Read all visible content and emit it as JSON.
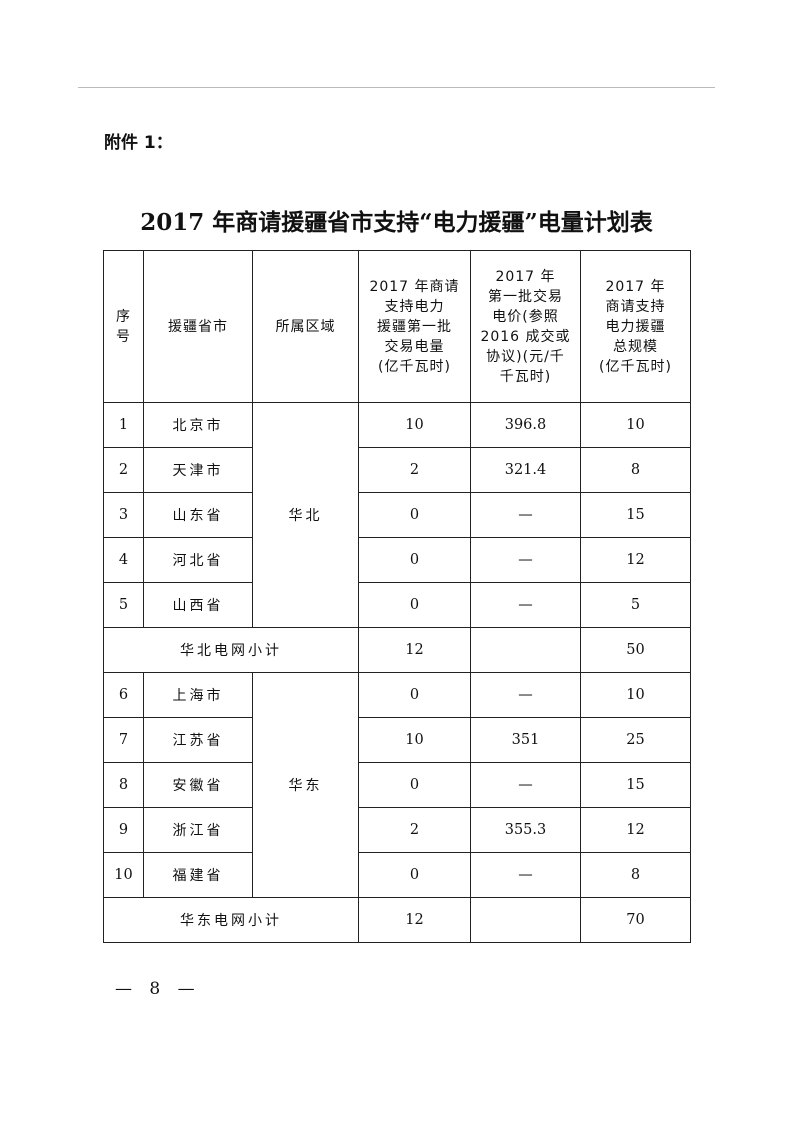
{
  "attachment_label": "附件 1：",
  "title": "2017 年商请援疆省市支持“电力援疆”电量计划表",
  "table": {
    "headers": [
      "序\n号",
      "援疆省市",
      "所属区域",
      "2017 年商请\n支持电力\n援疆第一批\n交易电量\n(亿千瓦时)",
      "2017 年\n第一批交易\n电价(参照\n2016 成交或\n协议)(元/千\n千瓦时)",
      "2017 年\n商请支持\n电力援疆\n总规模\n(亿千瓦时)"
    ],
    "groups": [
      {
        "region": "华北",
        "rows": [
          {
            "no": "1",
            "name": "北京市",
            "volume": "10",
            "price": "396.8",
            "total": "10"
          },
          {
            "no": "2",
            "name": "天津市",
            "volume": "2",
            "price": "321.4",
            "total": "8"
          },
          {
            "no": "3",
            "name": "山东省",
            "volume": "0",
            "price": "—",
            "total": "15"
          },
          {
            "no": "4",
            "name": "河北省",
            "volume": "0",
            "price": "—",
            "total": "12"
          },
          {
            "no": "5",
            "name": "山西省",
            "volume": "0",
            "price": "—",
            "total": "5"
          }
        ],
        "subtotal": {
          "label": "华北电网小计",
          "volume": "12",
          "price": "",
          "total": "50"
        }
      },
      {
        "region": "华东",
        "rows": [
          {
            "no": "6",
            "name": "上海市",
            "volume": "0",
            "price": "—",
            "total": "10"
          },
          {
            "no": "7",
            "name": "江苏省",
            "volume": "10",
            "price": "351",
            "total": "25"
          },
          {
            "no": "8",
            "name": "安徽省",
            "volume": "0",
            "price": "—",
            "total": "15"
          },
          {
            "no": "9",
            "name": "浙江省",
            "volume": "2",
            "price": "355.3",
            "total": "12"
          },
          {
            "no": "10",
            "name": "福建省",
            "volume": "0",
            "price": "—",
            "total": "8"
          }
        ],
        "subtotal": {
          "label": "华东电网小计",
          "volume": "12",
          "price": "",
          "total": "70"
        }
      }
    ]
  },
  "page_number": "— 8 —"
}
